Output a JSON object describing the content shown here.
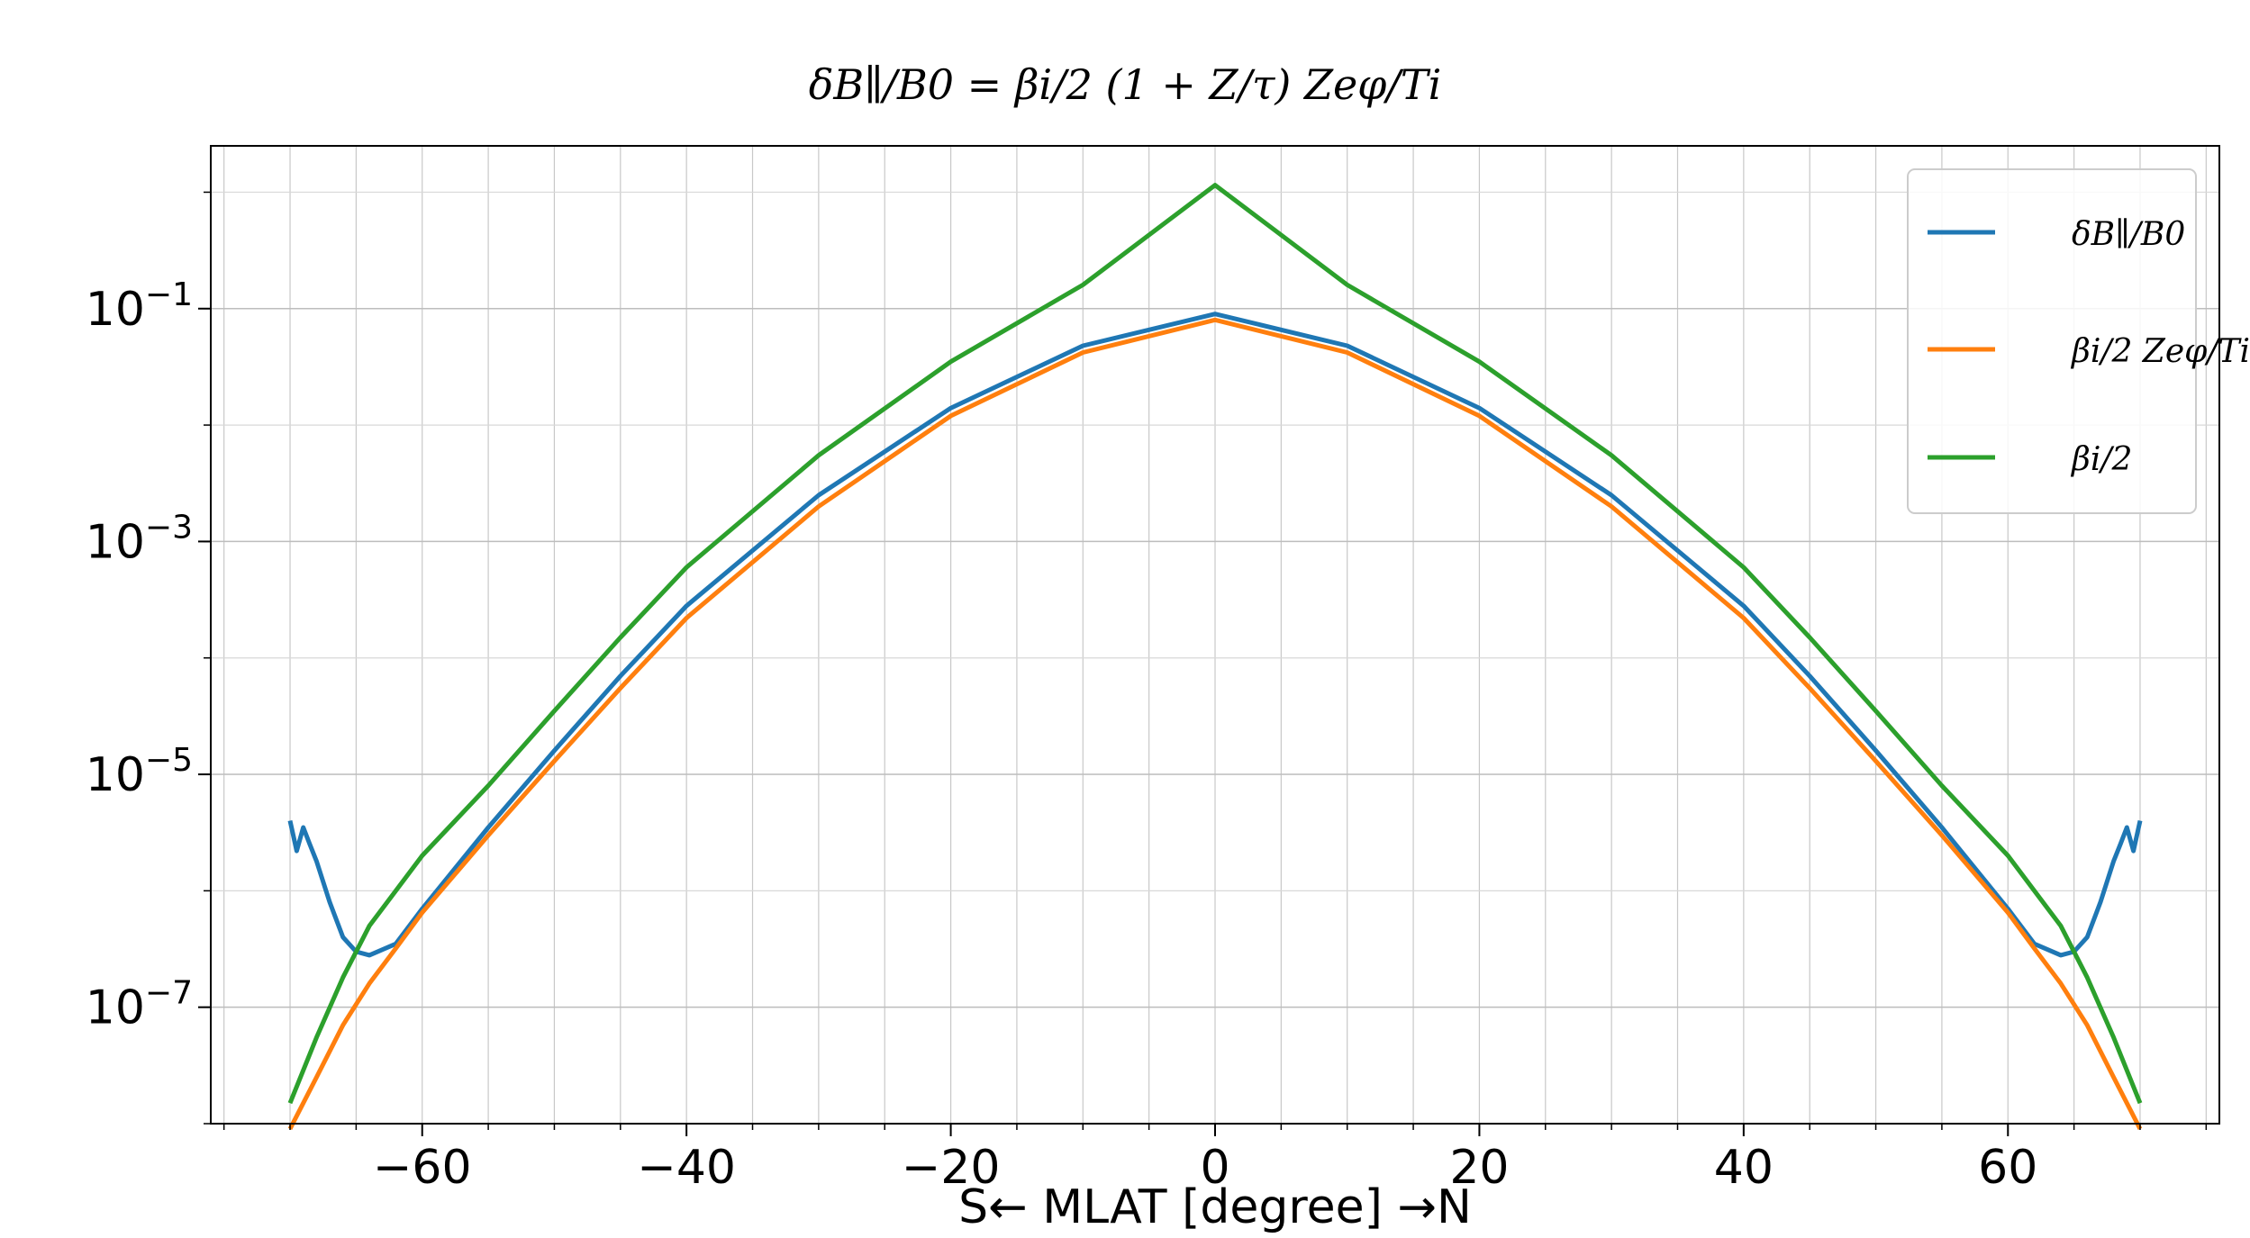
{
  "chart_data": {
    "type": "line",
    "title": "δB∥/B0 = βi/2 (1 + Z/τ) Zeφ/Ti",
    "xlabel": "S← MLAT [degree] →N",
    "ylabel": "",
    "x_scale": "linear",
    "y_scale": "log",
    "xlim": [
      -76,
      76
    ],
    "ylim": [
      1e-08,
      2.5
    ],
    "x_ticks": [
      -60,
      -40,
      -20,
      0,
      20,
      40,
      60
    ],
    "x_tick_labels": [
      "−60",
      "−40",
      "−20",
      "0",
      "20",
      "40",
      "60"
    ],
    "y_ticks": [
      0.1,
      0.001,
      1e-05,
      1e-07
    ],
    "y_tick_labels": [
      {
        "base": "10",
        "exp": "−1"
      },
      {
        "base": "10",
        "exp": "−3"
      },
      {
        "base": "10",
        "exp": "−5"
      },
      {
        "base": "10",
        "exp": "−7"
      }
    ],
    "grid": true,
    "legend_position": "top-right",
    "series": [
      {
        "name": "δB∥/B0",
        "color": "#1f77b4",
        "x": [
          -70,
          -69.5,
          -69,
          -68.5,
          -68,
          -67,
          -66,
          -65,
          -64,
          -62,
          -60,
          -55,
          -50,
          -45,
          -40,
          -30,
          -20,
          -10,
          0,
          10,
          20,
          30,
          40,
          45,
          50,
          55,
          60,
          62,
          64,
          65,
          66,
          67,
          68,
          68.5,
          69,
          69.5,
          70
        ],
        "y": [
          4e-06,
          2.2e-06,
          3.5e-06,
          2.5e-06,
          1.8e-06,
          8e-07,
          4e-07,
          3e-07,
          2.8e-07,
          3.5e-07,
          7e-07,
          3.5e-06,
          1.6e-05,
          7e-05,
          0.00028,
          0.0025,
          0.014,
          0.048,
          0.09,
          0.048,
          0.014,
          0.0025,
          0.00028,
          7e-05,
          1.6e-05,
          3.5e-06,
          7e-07,
          3.5e-07,
          2.8e-07,
          3e-07,
          4e-07,
          8e-07,
          1.8e-06,
          2.5e-06,
          3.5e-06,
          2.2e-06,
          4e-06
        ]
      },
      {
        "name": "βi/2 Zeφ/Ti",
        "color": "#ff7f0e",
        "x": [
          -70,
          -68,
          -66,
          -64,
          -62,
          -60,
          -55,
          -50,
          -45,
          -40,
          -30,
          -20,
          -10,
          0,
          10,
          20,
          30,
          40,
          45,
          50,
          55,
          60,
          62,
          64,
          66,
          68,
          70
        ],
        "y": [
          9e-09,
          2.5e-08,
          7e-08,
          1.6e-07,
          3.2e-07,
          6.5e-07,
          3e-06,
          1.3e-05,
          5.5e-05,
          0.00022,
          0.002,
          0.012,
          0.042,
          0.08,
          0.042,
          0.012,
          0.002,
          0.00022,
          5.5e-05,
          1.3e-05,
          3e-06,
          6.5e-07,
          3.2e-07,
          1.6e-07,
          7e-08,
          2.5e-08,
          9e-09
        ]
      },
      {
        "name": "βi/2",
        "color": "#2ca02c",
        "x": [
          -70,
          -68,
          -66,
          -64,
          -62,
          -60,
          -55,
          -50,
          -45,
          -40,
          -30,
          -20,
          -10,
          0,
          10,
          20,
          30,
          40,
          45,
          50,
          55,
          60,
          62,
          64,
          66,
          68,
          70
        ],
        "y": [
          1.5e-08,
          5.5e-08,
          1.8e-07,
          5e-07,
          1e-06,
          2e-06,
          8e-06,
          3.5e-05,
          0.00015,
          0.0006,
          0.0055,
          0.035,
          0.16,
          1.15,
          0.16,
          0.035,
          0.0055,
          0.0006,
          0.00015,
          3.5e-05,
          8e-06,
          2e-06,
          1e-06,
          5e-07,
          1.8e-07,
          5.5e-08,
          1.5e-08
        ]
      }
    ]
  }
}
